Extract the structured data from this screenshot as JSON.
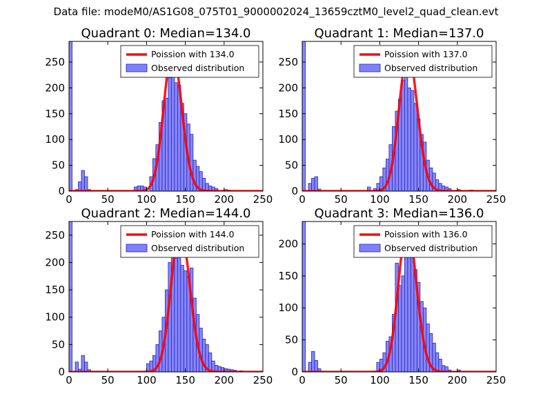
{
  "figure": {
    "suptitle": "Data file: modeM0/AS1G08_075T01_9000002024_13659cztM0_level2_quad_clean.evt"
  },
  "colors": {
    "hist": "#8080ff",
    "hist_edge": "#2222aa",
    "poisson": "#ff0000",
    "axis": "#000000"
  },
  "chart_data": [
    {
      "type": "bar",
      "title": "Quadrant 0: Median=134.0",
      "xlim": [
        0,
        250
      ],
      "ylim": [
        0,
        290
      ],
      "xticks": [
        0,
        50,
        100,
        150,
        200,
        250
      ],
      "yticks": [
        0,
        50,
        100,
        150,
        200,
        250
      ],
      "legend": [
        "Poission with 134.0",
        "Observed distribution"
      ],
      "legend_loc": "upper-right",
      "median": 134.0,
      "bin_width": 4,
      "bins": [
        [
          0,
          290
        ],
        [
          8,
          3
        ],
        [
          12,
          18
        ],
        [
          16,
          40
        ],
        [
          20,
          28
        ],
        [
          24,
          3
        ],
        [
          84,
          8
        ],
        [
          88,
          10
        ],
        [
          92,
          10
        ],
        [
          96,
          8
        ],
        [
          104,
          28
        ],
        [
          108,
          63
        ],
        [
          112,
          90
        ],
        [
          116,
          133
        ],
        [
          120,
          175
        ],
        [
          124,
          180
        ],
        [
          128,
          220
        ],
        [
          132,
          238
        ],
        [
          136,
          210
        ],
        [
          140,
          205
        ],
        [
          144,
          170
        ],
        [
          148,
          150
        ],
        [
          152,
          130
        ],
        [
          156,
          110
        ],
        [
          160,
          60
        ],
        [
          164,
          48
        ],
        [
          168,
          38
        ],
        [
          172,
          25
        ],
        [
          176,
          15
        ],
        [
          180,
          10
        ],
        [
          184,
          8
        ],
        [
          188,
          5
        ],
        [
          200,
          3
        ],
        [
          204,
          2
        ]
      ],
      "poisson_peak": 270
    },
    {
      "type": "bar",
      "title": "Quadrant 1: Median=137.0",
      "xlim": [
        0,
        250
      ],
      "ylim": [
        0,
        290
      ],
      "xticks": [
        0,
        50,
        100,
        150,
        200,
        250
      ],
      "yticks": [
        0,
        50,
        100,
        150,
        200,
        250
      ],
      "legend": [
        "Poission with 137.0",
        "Observed distribution"
      ],
      "legend_loc": "upper-right",
      "median": 137.0,
      "bin_width": 4,
      "bins": [
        [
          0,
          290
        ],
        [
          8,
          15
        ],
        [
          12,
          25
        ],
        [
          16,
          28
        ],
        [
          20,
          4
        ],
        [
          84,
          8
        ],
        [
          92,
          5
        ],
        [
          96,
          15
        ],
        [
          100,
          28
        ],
        [
          104,
          45
        ],
        [
          108,
          62
        ],
        [
          112,
          90
        ],
        [
          116,
          125
        ],
        [
          120,
          155
        ],
        [
          124,
          178
        ],
        [
          128,
          215
        ],
        [
          132,
          240
        ],
        [
          136,
          200
        ],
        [
          140,
          195
        ],
        [
          144,
          170
        ],
        [
          148,
          140
        ],
        [
          152,
          110
        ],
        [
          156,
          95
        ],
        [
          160,
          60
        ],
        [
          164,
          45
        ],
        [
          168,
          35
        ],
        [
          172,
          22
        ],
        [
          176,
          15
        ],
        [
          180,
          10
        ],
        [
          184,
          8
        ],
        [
          188,
          5
        ],
        [
          200,
          3
        ],
        [
          216,
          2
        ]
      ],
      "poisson_peak": 268
    },
    {
      "type": "bar",
      "title": "Quadrant 2: Median=144.0",
      "xlim": [
        0,
        250
      ],
      "ylim": [
        0,
        275
      ],
      "xticks": [
        0,
        50,
        100,
        150,
        200,
        250
      ],
      "yticks": [
        0,
        50,
        100,
        150,
        200,
        250
      ],
      "legend": [
        "Poission with 144.0",
        "Observed distribution"
      ],
      "legend_loc": "upper-right",
      "median": 144.0,
      "bin_width": 4,
      "bins": [
        [
          0,
          275
        ],
        [
          8,
          18
        ],
        [
          12,
          5
        ],
        [
          16,
          30
        ],
        [
          20,
          18
        ],
        [
          24,
          4
        ],
        [
          100,
          15
        ],
        [
          104,
          20
        ],
        [
          108,
          30
        ],
        [
          112,
          50
        ],
        [
          116,
          75
        ],
        [
          120,
          100
        ],
        [
          124,
          150
        ],
        [
          128,
          200
        ],
        [
          132,
          235
        ],
        [
          136,
          208
        ],
        [
          140,
          230
        ],
        [
          144,
          195
        ],
        [
          148,
          185
        ],
        [
          152,
          175
        ],
        [
          156,
          190
        ],
        [
          160,
          135
        ],
        [
          164,
          105
        ],
        [
          168,
          80
        ],
        [
          172,
          60
        ],
        [
          176,
          50
        ],
        [
          180,
          35
        ],
        [
          184,
          20
        ],
        [
          188,
          12
        ],
        [
          192,
          10
        ],
        [
          196,
          8
        ],
        [
          200,
          6
        ],
        [
          204,
          5
        ],
        [
          208,
          4
        ],
        [
          212,
          3
        ],
        [
          220,
          2
        ]
      ],
      "poisson_peak": 262
    },
    {
      "type": "bar",
      "title": "Quadrant 3: Median=136.0",
      "xlim": [
        0,
        250
      ],
      "ylim": [
        0,
        235
      ],
      "xticks": [
        0,
        50,
        100,
        150,
        200,
        250
      ],
      "yticks": [
        0,
        50,
        100,
        150,
        200
      ],
      "legend": [
        "Poission with 136.0",
        "Observed distribution"
      ],
      "legend_loc": "upper-right",
      "median": 136.0,
      "bin_width": 4,
      "bins": [
        [
          0,
          235
        ],
        [
          8,
          15
        ],
        [
          12,
          32
        ],
        [
          16,
          18
        ],
        [
          20,
          5
        ],
        [
          96,
          15
        ],
        [
          100,
          20
        ],
        [
          104,
          30
        ],
        [
          108,
          48
        ],
        [
          112,
          55
        ],
        [
          116,
          90
        ],
        [
          120,
          170
        ],
        [
          124,
          135
        ],
        [
          128,
          150
        ],
        [
          132,
          200
        ],
        [
          136,
          185
        ],
        [
          140,
          195
        ],
        [
          144,
          160
        ],
        [
          148,
          140
        ],
        [
          152,
          110
        ],
        [
          156,
          100
        ],
        [
          160,
          75
        ],
        [
          164,
          60
        ],
        [
          168,
          45
        ],
        [
          172,
          30
        ],
        [
          176,
          20
        ],
        [
          180,
          10
        ],
        [
          184,
          8
        ],
        [
          188,
          3
        ],
        [
          200,
          3
        ]
      ],
      "poisson_peak": 226
    }
  ]
}
